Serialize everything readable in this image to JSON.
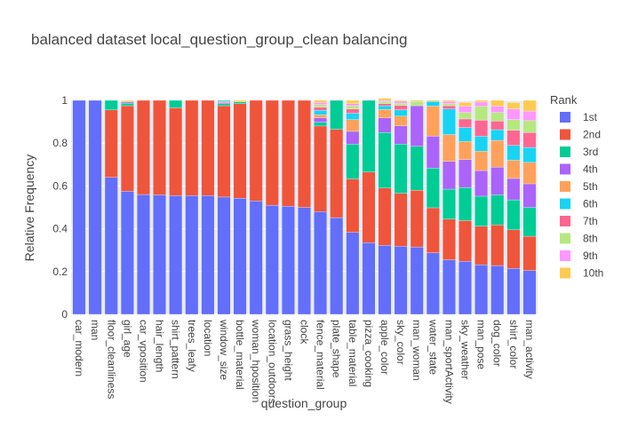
{
  "chart_data": {
    "type": "bar",
    "stacked": true,
    "title": "balanced dataset local_question_group_clean balancing",
    "xlabel": "question_group",
    "ylabel": "Relative Frequency",
    "ylim": [
      0,
      1
    ],
    "yticks": [
      0,
      0.2,
      0.4,
      0.6,
      0.8,
      1
    ],
    "ytick_labels": [
      "0",
      "0.2",
      "0.4",
      "0.6",
      "0.8",
      "1"
    ],
    "grid": true,
    "legend_title": "Rank",
    "legend_position": "right",
    "categories": [
      "car_modern",
      "man",
      "floor_cleanliness",
      "girl_age",
      "car_vposition",
      "hair_length",
      "shirt_pattern",
      "trees_leafy",
      "location",
      "window_size",
      "bottle_material",
      "woman_hposition",
      "location_outdoors",
      "grass_height",
      "clock",
      "fence_material",
      "plate_shape",
      "table_material",
      "pizza_cooking",
      "apple_color",
      "sky_color",
      "man_woman",
      "water_state",
      "man_sportActivity",
      "sky_weather",
      "man_pose",
      "dog_color",
      "shirt_color",
      "man_activity"
    ],
    "series": [
      {
        "name": "1st",
        "color": "#636efa",
        "values": [
          1.0,
          1.0,
          0.64,
          0.575,
          0.56,
          0.558,
          0.555,
          0.555,
          0.555,
          0.548,
          0.543,
          0.53,
          0.51,
          0.505,
          0.5,
          0.48,
          0.452,
          0.383,
          0.335,
          0.322,
          0.318,
          0.315,
          0.288,
          0.255,
          0.248,
          0.232,
          0.228,
          0.215,
          0.205
        ]
      },
      {
        "name": "2nd",
        "color": "#ef553b",
        "values": [
          0.0,
          0.0,
          0.315,
          0.4,
          0.44,
          0.442,
          0.41,
          0.445,
          0.445,
          0.427,
          0.442,
          0.47,
          0.49,
          0.495,
          0.5,
          0.4,
          0.413,
          0.25,
          0.33,
          0.268,
          0.248,
          0.265,
          0.21,
          0.19,
          0.19,
          0.18,
          0.19,
          0.18,
          0.16
        ]
      },
      {
        "name": "3rd",
        "color": "#00cc96",
        "values": [
          0.0,
          0.0,
          0.045,
          0.012,
          0.0,
          0.0,
          0.035,
          0.0,
          0.0,
          0.01,
          0.008,
          0.0,
          0.0,
          0.0,
          0.0,
          0.018,
          0.135,
          0.162,
          0.335,
          0.26,
          0.23,
          0.205,
          0.185,
          0.14,
          0.155,
          0.14,
          0.14,
          0.14,
          0.135
        ]
      },
      {
        "name": "4th",
        "color": "#ab63fa",
        "values": [
          0.0,
          0.0,
          0.0,
          0.005,
          0.0,
          0.0,
          0.0,
          0.0,
          0.0,
          0.005,
          0.0,
          0.0,
          0.0,
          0.0,
          0.0,
          0.02,
          0.0,
          0.06,
          0.0,
          0.068,
          0.085,
          0.19,
          0.15,
          0.13,
          0.13,
          0.12,
          0.13,
          0.1,
          0.11
        ]
      },
      {
        "name": "5th",
        "color": "#ffa15a",
        "values": [
          0.0,
          0.0,
          0.0,
          0.004,
          0.0,
          0.0,
          0.0,
          0.0,
          0.0,
          0.005,
          0.0,
          0.0,
          0.0,
          0.0,
          0.0,
          0.015,
          0.0,
          0.055,
          0.0,
          0.04,
          0.045,
          0.0,
          0.14,
          0.125,
          0.085,
          0.09,
          0.125,
          0.085,
          0.1
        ]
      },
      {
        "name": "6th",
        "color": "#19d3f3",
        "values": [
          0.0,
          0.0,
          0.0,
          0.0,
          0.0,
          0.0,
          0.0,
          0.0,
          0.0,
          0.005,
          0.0,
          0.0,
          0.0,
          0.0,
          0.0,
          0.02,
          0.0,
          0.03,
          0.0,
          0.017,
          0.03,
          0.0,
          0.022,
          0.12,
          0.065,
          0.07,
          0.05,
          0.07,
          0.07
        ]
      },
      {
        "name": "7th",
        "color": "#ff6692",
        "values": [
          0.0,
          0.0,
          0.0,
          0.0,
          0.0,
          0.0,
          0.0,
          0.0,
          0.0,
          0.0,
          0.0,
          0.0,
          0.0,
          0.0,
          0.0,
          0.015,
          0.0,
          0.02,
          0.0,
          0.01,
          0.02,
          0.0,
          0.0,
          0.015,
          0.04,
          0.075,
          0.04,
          0.07,
          0.07
        ]
      },
      {
        "name": "8th",
        "color": "#b6e880",
        "values": [
          0.0,
          0.0,
          0.0,
          0.0,
          0.0,
          0.0,
          0.0,
          0.0,
          0.0,
          0.0,
          0.0,
          0.0,
          0.0,
          0.0,
          0.0,
          0.012,
          0.0,
          0.015,
          0.0,
          0.01,
          0.01,
          0.02,
          0.0,
          0.01,
          0.03,
          0.065,
          0.04,
          0.05,
          0.055
        ]
      },
      {
        "name": "9th",
        "color": "#ff97ff",
        "values": [
          0.0,
          0.0,
          0.0,
          0.0,
          0.0,
          0.0,
          0.0,
          0.0,
          0.0,
          0.0,
          0.0,
          0.0,
          0.0,
          0.0,
          0.0,
          0.01,
          0.0,
          0.01,
          0.0,
          0.005,
          0.01,
          0.0,
          0.0,
          0.01,
          0.03,
          0.02,
          0.03,
          0.05,
          0.045
        ]
      },
      {
        "name": "10th",
        "color": "#fecb52",
        "values": [
          0.0,
          0.0,
          0.0,
          0.004,
          0.0,
          0.0,
          0.0,
          0.0,
          0.0,
          0.0,
          0.007,
          0.0,
          0.0,
          0.0,
          0.0,
          0.01,
          0.0,
          0.015,
          0.0,
          0.01,
          0.004,
          0.005,
          0.005,
          0.005,
          0.017,
          0.008,
          0.027,
          0.03,
          0.05
        ]
      }
    ]
  }
}
